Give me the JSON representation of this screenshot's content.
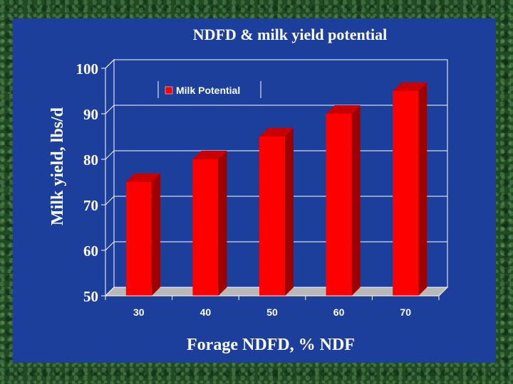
{
  "chart_data": {
    "type": "bar",
    "title": "NDFD & milk yield potential",
    "xlabel": "Forage NDFD, % NDF",
    "ylabel": "Milk yield, lbs/d",
    "categories": [
      "30",
      "40",
      "50",
      "60",
      "70"
    ],
    "series": [
      {
        "name": "Milk Potential",
        "values": [
          75,
          80,
          85,
          90,
          95
        ]
      }
    ],
    "ylim": [
      50,
      100
    ],
    "yticks": [
      "50",
      "60",
      "70",
      "80",
      "90",
      "100"
    ],
    "grid": true,
    "legend": "top-left",
    "three_d": true
  },
  "colors": {
    "background": "#1d3f9c",
    "bar_front": "#ff0000",
    "bar_side": "#9e0000",
    "bar_top": "#c80000",
    "text": "#ffffff",
    "frame": "#1d3f9c"
  }
}
